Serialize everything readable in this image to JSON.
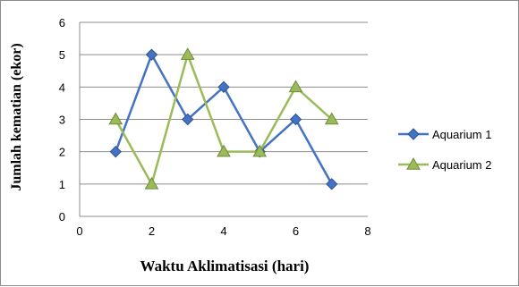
{
  "chart_data": {
    "type": "scatter",
    "title": "",
    "xlabel": "Waktu Aklimatisasi  (hari)",
    "ylabel": "Jumlah kematian (ekor)",
    "xlim": [
      0,
      8
    ],
    "ylim": [
      0,
      6
    ],
    "xticks": [
      0,
      2,
      4,
      6,
      8
    ],
    "yticks": [
      0,
      1,
      2,
      3,
      4,
      5,
      6
    ],
    "grid": "horizontal",
    "legend_position": "right",
    "series": [
      {
        "name": "Aquarium 1",
        "color": "#4472c4",
        "marker": "diamond",
        "x": [
          1,
          2,
          3,
          4,
          5,
          6,
          7
        ],
        "y": [
          2,
          5,
          3,
          4,
          2,
          3,
          1
        ]
      },
      {
        "name": "Aquarium 2",
        "color": "#9bbb59",
        "marker": "triangle",
        "x": [
          1,
          2,
          3,
          4,
          5,
          6,
          7
        ],
        "y": [
          3,
          1,
          5,
          2,
          2,
          4,
          3
        ]
      }
    ]
  }
}
